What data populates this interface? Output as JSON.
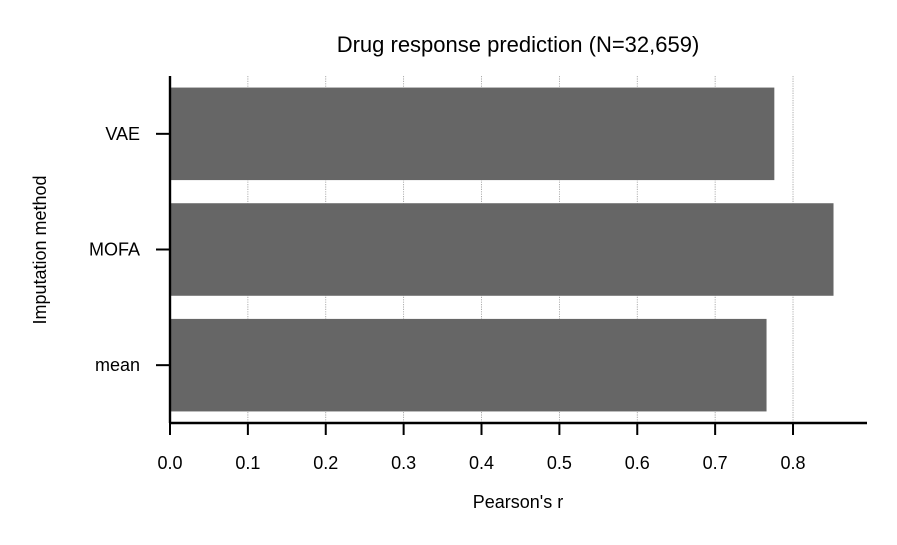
{
  "chart_data": {
    "type": "bar",
    "orientation": "horizontal",
    "title": "Drug response prediction (N=32,659)",
    "xlabel": "Pearson's r",
    "ylabel": "Imputation method",
    "categories": [
      "VAE",
      "MOFA",
      "mean"
    ],
    "values": [
      0.776,
      0.852,
      0.766
    ],
    "xlim": [
      0.0,
      0.895
    ],
    "xticks": [
      "0.0",
      "0.1",
      "0.2",
      "0.3",
      "0.4",
      "0.5",
      "0.6",
      "0.7",
      "0.8"
    ],
    "grid": "vertical dotted",
    "bar_color": "#666666",
    "grid_color": "#999999"
  }
}
